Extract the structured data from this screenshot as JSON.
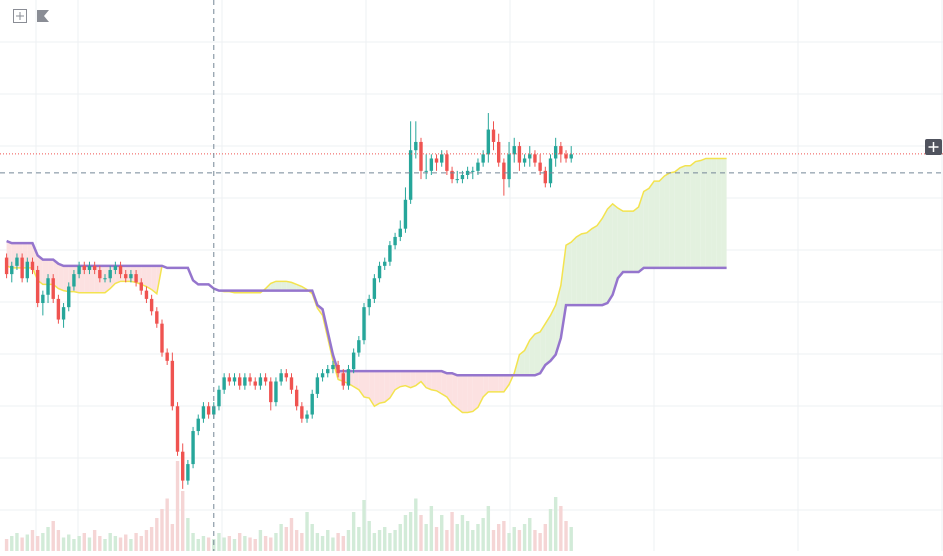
{
  "chart_data": {
    "type": "candlestick",
    "indicator": "Ichimoku Cloud",
    "x_label": "",
    "y_label": "",
    "price_range": [
      0,
      100
    ],
    "axis_labels_visible": false,
    "grid": true,
    "crosshair": {
      "x_index": 40,
      "y_value": 77.5
    },
    "price_line": {
      "value": 82.1,
      "color": "#ef5350",
      "style": "dotted"
    },
    "colors": {
      "up": "#26a69a",
      "down": "#ef5350",
      "volume_up": "#d2ebd8",
      "volume_down": "#f5d5d5",
      "span_a": "#f3e34f",
      "span_b": "#9575cd",
      "cloud_bull": "#e3f1df",
      "cloud_bear": "#fce1e1"
    },
    "candles": {
      "open": [
        57,
        53,
        55,
        57,
        52,
        56,
        54,
        46,
        48,
        52,
        47,
        42,
        45,
        50,
        53,
        55,
        54,
        55,
        54,
        52,
        52,
        54,
        55,
        53,
        52,
        53,
        51,
        49,
        47,
        44,
        41,
        34,
        32,
        21,
        10,
        3,
        7,
        15,
        18,
        21,
        19,
        21,
        25,
        28,
        27,
        28,
        26,
        28,
        27,
        26,
        28,
        27,
        22,
        27,
        29,
        28,
        25,
        21,
        18,
        19,
        24,
        28,
        29,
        30,
        31,
        29,
        26,
        30,
        34,
        37,
        45,
        47,
        52,
        55,
        56,
        60,
        62,
        64,
        71,
        83,
        85,
        78,
        78,
        81,
        80,
        82,
        78,
        76,
        76,
        77,
        78,
        78,
        80,
        82,
        88,
        85,
        80,
        76,
        82,
        84,
        80,
        81,
        82,
        80,
        78,
        75,
        81,
        84,
        82,
        81
      ],
      "close": [
        53,
        55,
        57,
        52,
        56,
        54,
        46,
        48,
        52,
        47,
        42,
        45,
        50,
        53,
        55,
        54,
        55,
        54,
        52,
        52,
        54,
        55,
        53,
        52,
        53,
        51,
        49,
        47,
        44,
        41,
        34,
        32,
        21,
        10,
        3,
        7,
        15,
        18,
        21,
        19,
        21,
        25,
        28,
        27,
        28,
        26,
        28,
        27,
        26,
        28,
        27,
        22,
        27,
        29,
        28,
        25,
        21,
        18,
        19,
        24,
        28,
        29,
        30,
        31,
        29,
        26,
        30,
        34,
        37,
        45,
        47,
        52,
        55,
        56,
        60,
        62,
        64,
        71,
        83,
        85,
        78,
        78,
        81,
        80,
        82,
        78,
        76,
        76,
        77,
        78,
        78,
        80,
        82,
        88,
        85,
        80,
        76,
        82,
        84,
        80,
        81,
        82,
        80,
        78,
        75,
        81,
        84,
        82,
        81,
        82
      ],
      "high": [
        58,
        56,
        58,
        58,
        57,
        57,
        55,
        49,
        53,
        53,
        48,
        46,
        51,
        54,
        56,
        56,
        56,
        56,
        55,
        53,
        55,
        56,
        56,
        54,
        54,
        54,
        52,
        50,
        48,
        45,
        42,
        35,
        34,
        22,
        12,
        8,
        16,
        19,
        22,
        22,
        22,
        26,
        29,
        29,
        29,
        29,
        29,
        29,
        28,
        29,
        29,
        28,
        28,
        30,
        30,
        29,
        26,
        22,
        20,
        25,
        29,
        30,
        31,
        32,
        32,
        30,
        31,
        35,
        38,
        46,
        48,
        53,
        56,
        57,
        61,
        63,
        66,
        74,
        90,
        90,
        86,
        82,
        82,
        82,
        83,
        83,
        79,
        78,
        78,
        79,
        79,
        81,
        83,
        92,
        90,
        87,
        81,
        85,
        86,
        85,
        82,
        84,
        83,
        82,
        79,
        82,
        86,
        85,
        83,
        84
      ],
      "low": [
        52,
        51,
        54,
        51,
        51,
        53,
        45,
        43,
        46,
        46,
        41,
        40,
        44,
        49,
        52,
        53,
        53,
        53,
        51,
        51,
        51,
        53,
        52,
        51,
        51,
        50,
        48,
        46,
        43,
        40,
        33,
        31,
        20,
        9,
        1,
        2,
        6,
        14,
        17,
        18,
        18,
        20,
        24,
        26,
        26,
        25,
        25,
        26,
        25,
        25,
        26,
        20,
        21,
        26,
        27,
        24,
        20,
        17,
        17,
        18,
        23,
        27,
        28,
        29,
        28,
        25,
        25,
        29,
        33,
        36,
        43,
        46,
        51,
        54,
        55,
        59,
        61,
        63,
        70,
        81,
        76,
        76,
        77,
        78,
        79,
        77,
        75,
        75,
        75,
        76,
        76,
        77,
        79,
        80,
        83,
        79,
        72,
        74,
        80,
        78,
        79,
        79,
        79,
        77,
        74,
        74,
        79,
        80,
        80,
        80
      ]
    },
    "volume": [
      8,
      10,
      12,
      9,
      11,
      14,
      10,
      12,
      16,
      20,
      14,
      9,
      11,
      8,
      10,
      12,
      9,
      14,
      10,
      8,
      12,
      10,
      9,
      11,
      8,
      12,
      10,
      14,
      16,
      22,
      28,
      35,
      18,
      60,
      40,
      22,
      12,
      8,
      10,
      9,
      8,
      12,
      9,
      10,
      8,
      12,
      10,
      9,
      8,
      14,
      10,
      9,
      12,
      18,
      16,
      22,
      14,
      12,
      26,
      18,
      12,
      10,
      14,
      9,
      12,
      10,
      14,
      26,
      16,
      34,
      20,
      12,
      14,
      16,
      12,
      14,
      18,
      24,
      26,
      35,
      24,
      18,
      30,
      16,
      24,
      14,
      26,
      18,
      24,
      20,
      14,
      18,
      22,
      30,
      14,
      18,
      20,
      12,
      16,
      14,
      18,
      22,
      14,
      12,
      18,
      28,
      36,
      30,
      20,
      16
    ],
    "span_a": [
      null,
      null,
      null,
      null,
      null,
      null,
      null,
      null,
      null,
      null,
      null,
      null,
      null,
      null,
      null,
      null,
      null,
      null,
      null,
      null,
      null,
      null,
      null,
      null,
      null,
      null,
      null,
      null,
      null,
      null,
      null,
      null,
      null,
      null,
      null,
      null,
      null,
      null,
      null,
      null,
      null,
      null,
      null,
      null,
      null,
      null,
      null,
      null,
      null,
      null,
      null,
      null,
      null,
      null,
      null,
      null,
      null,
      null,
      null,
      null,
      null,
      null,
      null,
      null,
      null,
      null,
      null,
      null,
      null,
      null,
      null,
      null,
      null,
      null,
      null,
      null,
      null,
      null,
      null,
      null,
      null,
      null,
      null,
      null,
      null,
      null,
      null,
      null,
      null,
      null,
      null,
      null,
      null,
      null,
      null,
      null,
      null,
      null,
      null,
      null,
      null,
      null,
      null,
      null,
      null,
      null,
      null,
      null,
      null,
      null
    ]
  }
}
